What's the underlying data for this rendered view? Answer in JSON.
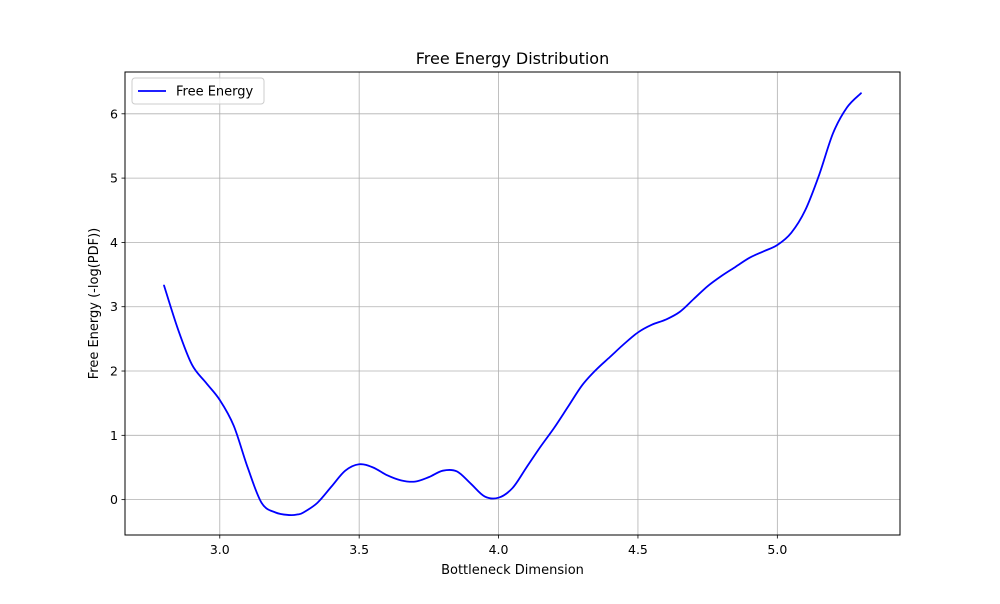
{
  "chart_data": {
    "type": "line",
    "title": "Free Energy Distribution",
    "xlabel": "Bottleneck Dimension",
    "ylabel": "Free Energy (-log(PDF))",
    "xlim": [
      2.66,
      5.44
    ],
    "ylim": [
      -0.55,
      6.65
    ],
    "xticks": [
      3.0,
      3.5,
      4.0,
      4.5,
      5.0
    ],
    "xtick_labels": [
      "3.0",
      "3.5",
      "4.0",
      "4.5",
      "5.0"
    ],
    "yticks": [
      0,
      1,
      2,
      3,
      4,
      5,
      6
    ],
    "ytick_labels": [
      "0",
      "1",
      "2",
      "3",
      "4",
      "5",
      "6"
    ],
    "grid": true,
    "legend_position": "top-left",
    "series": [
      {
        "name": "Free Energy",
        "color": "#0000ff",
        "x": [
          2.8,
          2.85,
          2.9,
          2.95,
          3.0,
          3.05,
          3.1,
          3.15,
          3.2,
          3.25,
          3.28,
          3.3,
          3.35,
          3.4,
          3.45,
          3.5,
          3.55,
          3.6,
          3.65,
          3.7,
          3.75,
          3.8,
          3.85,
          3.9,
          3.95,
          4.0,
          4.05,
          4.1,
          4.15,
          4.2,
          4.25,
          4.3,
          4.35,
          4.4,
          4.45,
          4.5,
          4.55,
          4.6,
          4.65,
          4.7,
          4.75,
          4.8,
          4.85,
          4.9,
          4.95,
          5.0,
          5.05,
          5.1,
          5.15,
          5.2,
          5.25,
          5.3
        ],
        "y": [
          3.33,
          2.65,
          2.1,
          1.82,
          1.55,
          1.15,
          0.5,
          -0.05,
          -0.2,
          -0.24,
          -0.23,
          -0.2,
          -0.05,
          0.2,
          0.45,
          0.55,
          0.5,
          0.38,
          0.3,
          0.28,
          0.35,
          0.45,
          0.44,
          0.25,
          0.05,
          0.03,
          0.18,
          0.5,
          0.82,
          1.12,
          1.45,
          1.78,
          2.02,
          2.22,
          2.42,
          2.6,
          2.72,
          2.8,
          2.92,
          3.12,
          3.32,
          3.48,
          3.62,
          3.76,
          3.86,
          3.96,
          4.15,
          4.5,
          5.05,
          5.7,
          6.1,
          6.32
        ]
      }
    ]
  }
}
